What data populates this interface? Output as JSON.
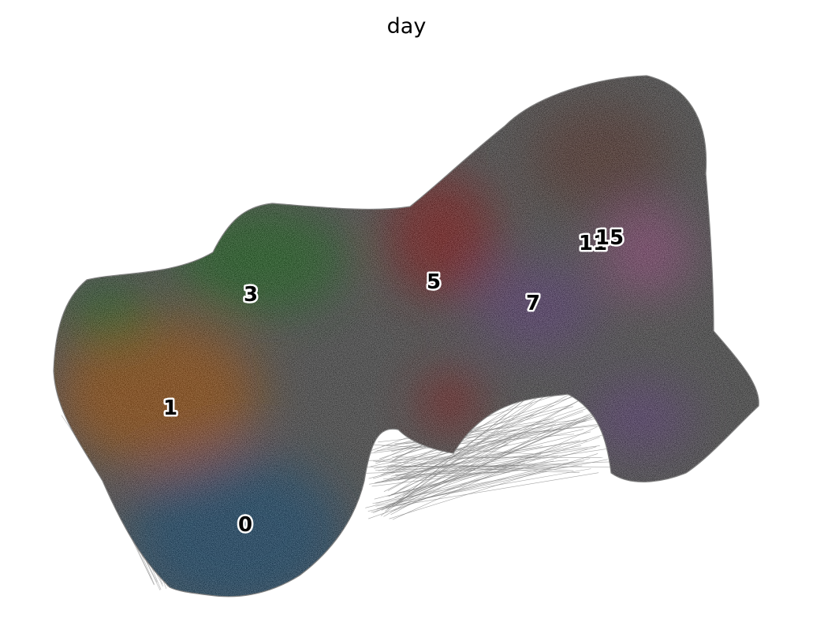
{
  "chart_data": {
    "type": "scatter",
    "title": "day",
    "xlabel": "",
    "ylabel": "",
    "axes_visible": false,
    "grid": false,
    "legend": "on data",
    "colors": {
      "background": "#ffffff",
      "edges": "#7f7f7f",
      "0": "#1f77b4",
      "1": "#ff7f0e",
      "3": "#2ca02c",
      "5": "#d62728",
      "7": "#9467bd",
      "11": "#8c564b",
      "15": "#e377c2"
    },
    "series": [
      {
        "name": "0",
        "label": "0"
      },
      {
        "name": "1",
        "label": "1"
      },
      {
        "name": "3",
        "label": "3"
      },
      {
        "name": "5",
        "label": "5"
      },
      {
        "name": "7",
        "label": "7"
      },
      {
        "name": "11",
        "label": "11"
      },
      {
        "name": "15",
        "label": "15"
      }
    ]
  }
}
